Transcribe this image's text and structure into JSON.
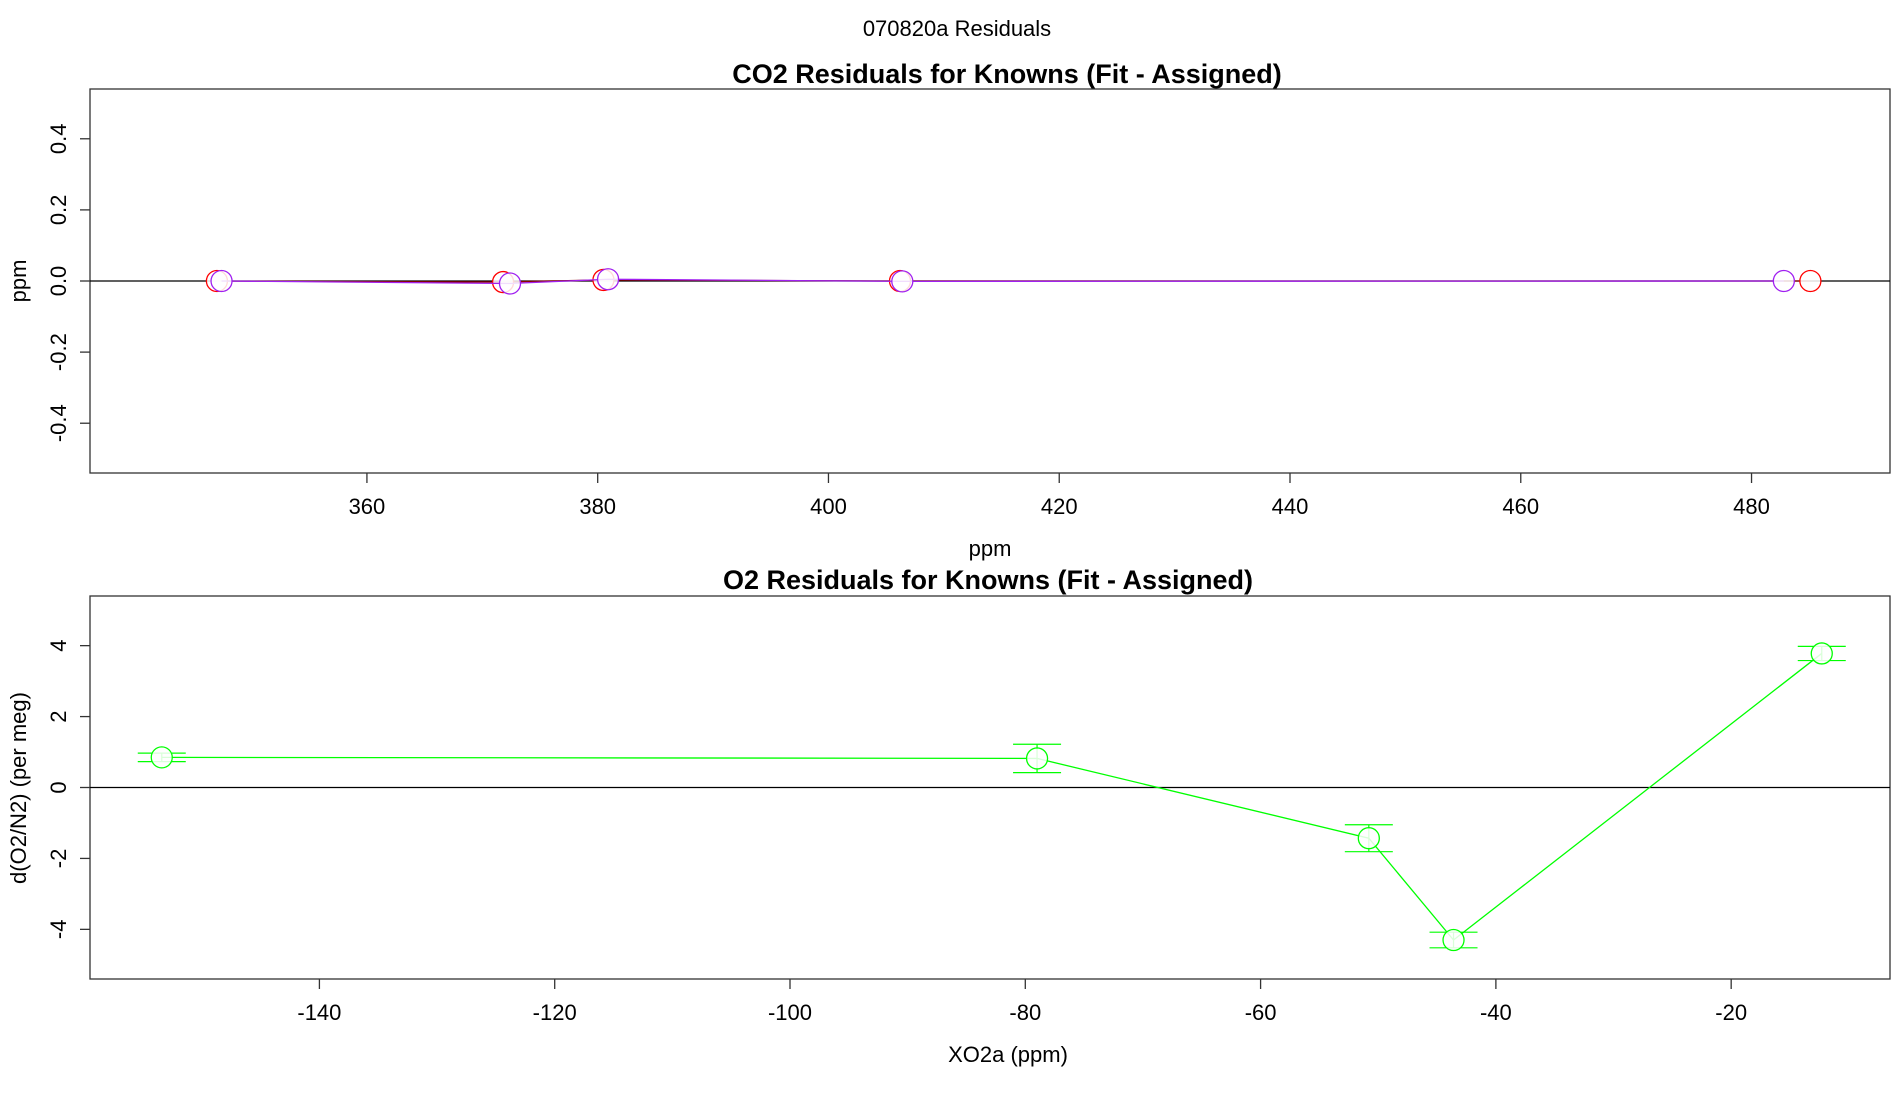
{
  "figure": {
    "suptitle": "070820a  Residuals"
  },
  "chart_data": [
    {
      "type": "line",
      "title": "CO2 Residuals for Knowns (Fit - Assigned)",
      "xlabel": "ppm",
      "ylabel": "ppm",
      "xlim": [
        336,
        492
      ],
      "ylim": [
        -0.54,
        0.54
      ],
      "xticks": [
        360,
        380,
        400,
        420,
        440,
        460,
        480
      ],
      "yticks": [
        -0.4,
        -0.2,
        0.0,
        0.2,
        0.4
      ],
      "xtick_labels": [
        "360",
        "380",
        "400",
        "420",
        "440",
        "460",
        "480"
      ],
      "ytick_labels": [
        "-0.4",
        "-0.2",
        "0.0",
        "0.2",
        "0.4"
      ],
      "reference_line": 0,
      "series": [
        {
          "color": "#ff0000",
          "line_color": "#8b0000",
          "x": [
            347,
            371.8,
            380.5,
            406.2,
            485.1
          ],
          "y": [
            0.0,
            -0.003,
            0.003,
            0.0,
            0.0
          ]
        },
        {
          "color": "#a020f0",
          "line_color": "#a020f0",
          "x": [
            347.4,
            372.4,
            380.9,
            406.4,
            482.8
          ],
          "y": [
            0.0,
            -0.007,
            0.005,
            -0.001,
            0.0
          ]
        }
      ]
    },
    {
      "type": "line",
      "title": "O2 Residuals for Knowns (Fit - Assigned)",
      "xlabel": "XO2a (ppm)",
      "ylabel": "d(O2/N2) (per meg)",
      "xlim": [
        -159.5,
        -6.5
      ],
      "ylim": [
        -5.4,
        5.4
      ],
      "xticks": [
        -140,
        -120,
        -100,
        -80,
        -60,
        -40,
        -20
      ],
      "yticks": [
        -4,
        -2,
        0,
        2,
        4
      ],
      "xtick_labels": [
        "-140",
        "-120",
        "-100",
        "-80",
        "-60",
        "-40",
        "-20"
      ],
      "ytick_labels": [
        "-4",
        "-2",
        "0",
        "2",
        "4"
      ],
      "reference_line": 0,
      "series": [
        {
          "color": "#00ff00",
          "line_color": "#00ff00",
          "x": [
            -153.4,
            -79,
            -50.8,
            -43.6,
            -12.3
          ],
          "y": [
            0.85,
            0.82,
            -1.43,
            -4.3,
            3.78
          ],
          "err": [
            0.12,
            0.4,
            0.38,
            0.22,
            0.2
          ]
        }
      ]
    }
  ]
}
